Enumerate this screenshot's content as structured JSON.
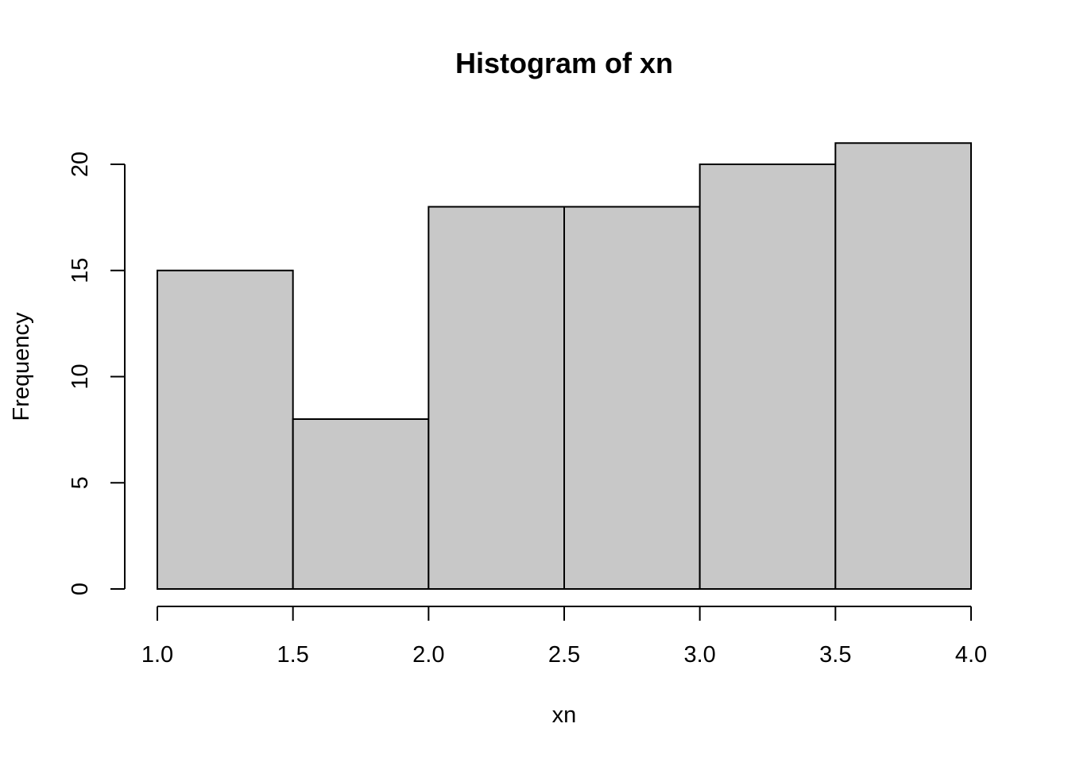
{
  "chart_data": {
    "type": "bar",
    "title": "Histogram of xn",
    "xlabel": "xn",
    "ylabel": "Frequency",
    "bins": [
      {
        "start": 1.0,
        "end": 1.5,
        "count": 15
      },
      {
        "start": 1.5,
        "end": 2.0,
        "count": 8
      },
      {
        "start": 2.0,
        "end": 2.5,
        "count": 18
      },
      {
        "start": 2.5,
        "end": 3.0,
        "count": 18
      },
      {
        "start": 3.0,
        "end": 3.5,
        "count": 20
      },
      {
        "start": 3.5,
        "end": 4.0,
        "count": 21
      }
    ],
    "xlim": [
      1.0,
      4.0
    ],
    "ylim": [
      0,
      21
    ],
    "x_ticks": [
      "1.0",
      "1.5",
      "2.0",
      "2.5",
      "3.0",
      "3.5",
      "4.0"
    ],
    "y_ticks": [
      "0",
      "5",
      "10",
      "15",
      "20"
    ],
    "grid": false,
    "bar_color": "#c8c8c8",
    "border_color": "#000000"
  }
}
